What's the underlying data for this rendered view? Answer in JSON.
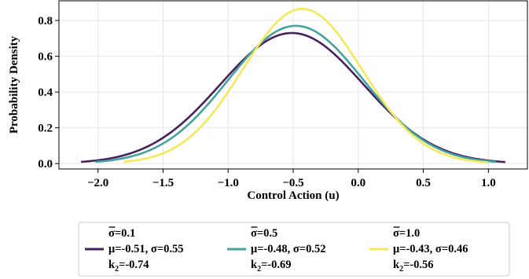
{
  "chart_data": {
    "type": "line",
    "xlabel": "Control Action (u)",
    "ylabel": "Probability Density",
    "xlim": [
      -2.3,
      1.3
    ],
    "ylim": [
      -0.03,
      0.91
    ],
    "xticks": [
      -2.0,
      -1.5,
      -1.0,
      -0.5,
      0.0,
      0.5,
      1.0
    ],
    "xtick_labels": [
      "−2.0",
      "−1.5",
      "−1.0",
      "−0.5",
      "0.0",
      "0.5",
      "1.0"
    ],
    "yticks": [
      0.0,
      0.2,
      0.4,
      0.6,
      0.8
    ],
    "ytick_labels": [
      "0.0",
      "0.2",
      "0.4",
      "0.6",
      "0.8"
    ],
    "grid": true,
    "legend_position": "bottom-center",
    "series": [
      {
        "sigma_bar_label": "σ=0.1",
        "stats_label": "μ=-0.51, σ=0.55",
        "k2_label": "k",
        "k2_sub": "2",
        "k2_value": "=-0.74",
        "mu": -0.51,
        "sigma": 0.55,
        "peak": 0.73,
        "x_range": [
          -2.13,
          1.13
        ],
        "color": "#46215d"
      },
      {
        "sigma_bar_label": "σ=0.5",
        "stats_label": "μ=-0.48, σ=0.52",
        "k2_label": "k",
        "k2_sub": "2",
        "k2_value": "=-0.69",
        "mu": -0.48,
        "sigma": 0.52,
        "peak": 0.77,
        "x_range": [
          -2.02,
          1.06
        ],
        "color": "#45a39d"
      },
      {
        "sigma_bar_label": "σ=1.0",
        "stats_label": "μ=-0.43, σ=0.46",
        "k2_label": "k",
        "k2_sub": "2",
        "k2_value": "=-0.56",
        "mu": -0.43,
        "sigma": 0.46,
        "peak": 0.865,
        "x_range": [
          -1.8,
          1.0
        ],
        "color": "#f5e85a"
      }
    ]
  }
}
